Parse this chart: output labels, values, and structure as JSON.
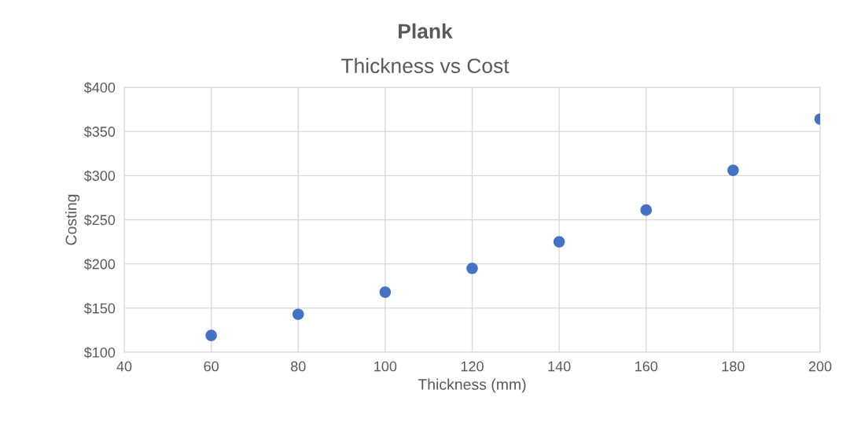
{
  "chart_data": {
    "type": "scatter",
    "title": "Plank",
    "subtitle": "Thickness vs Cost",
    "xlabel": "Thickness (mm)",
    "ylabel": "Costing",
    "x": [
      60,
      80,
      100,
      120,
      140,
      160,
      180,
      200
    ],
    "series": [
      {
        "color": "#4472c4",
        "values": [
          119,
          143,
          168,
          195,
          225,
          261,
          306,
          364
        ]
      }
    ],
    "xlim": [
      40,
      200
    ],
    "xticks": [
      40,
      60,
      80,
      100,
      120,
      140,
      160,
      180,
      200
    ],
    "ylim": [
      100,
      400
    ],
    "yticks": [
      {
        "value": 100,
        "label": "$100"
      },
      {
        "value": 150,
        "label": "$150"
      },
      {
        "value": 200,
        "label": "$200"
      },
      {
        "value": 250,
        "label": "$250"
      },
      {
        "value": 300,
        "label": "$300"
      },
      {
        "value": 350,
        "label": "$350"
      },
      {
        "value": 400,
        "label": "$400"
      }
    ],
    "grid": true,
    "marker": "circle"
  }
}
